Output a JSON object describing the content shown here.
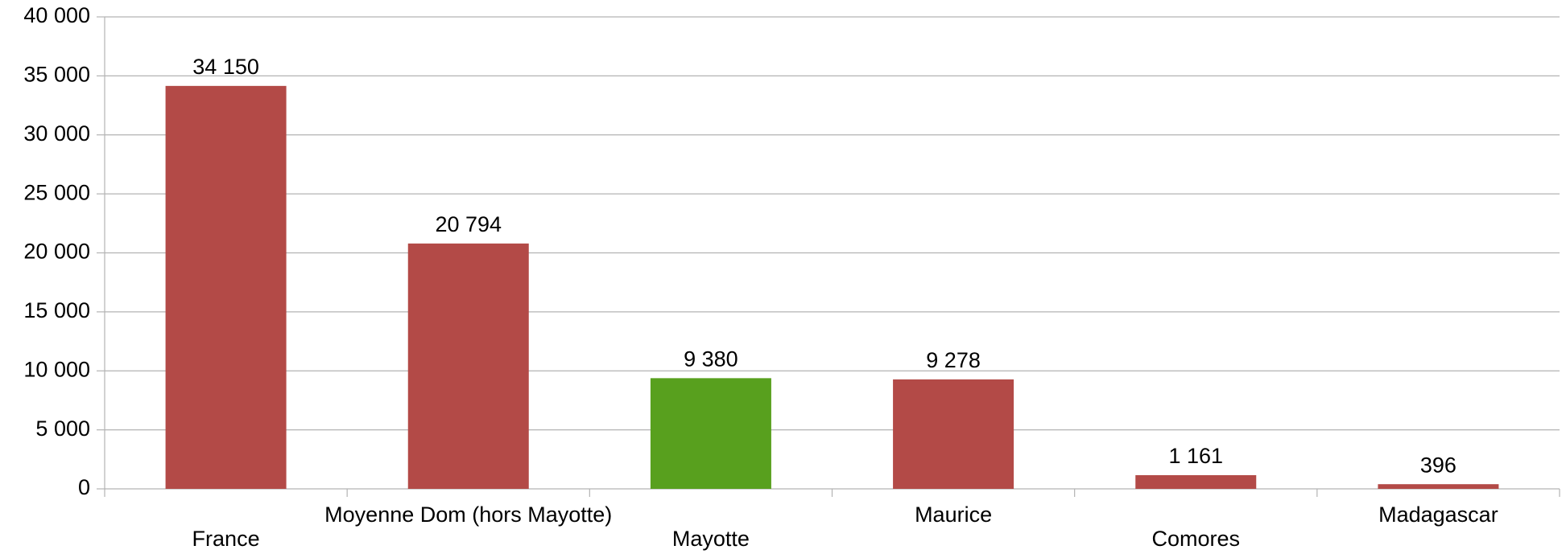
{
  "chart_data": {
    "type": "bar",
    "categories": [
      "France",
      "Moyenne Dom (hors Mayotte)",
      "Mayotte",
      "Maurice",
      "Comores",
      "Madagascar"
    ],
    "values": [
      34150,
      20794,
      9380,
      9278,
      1161,
      396
    ],
    "value_labels": [
      "34 150",
      "20 794",
      "9 380",
      "9 278",
      "1 161",
      "396"
    ],
    "colors": [
      "#b34a47",
      "#b34a47",
      "#58a01e",
      "#b34a47",
      "#b34a47",
      "#b34a47"
    ],
    "ylim": [
      0,
      40000
    ],
    "yticks": [
      0,
      {
        "value": 5000,
        "label": "5 000"
      },
      {
        "value": 10000,
        "label": "10 000"
      },
      {
        "value": 15000,
        "label": "15 000"
      },
      {
        "value": 20000,
        "label": "20 000"
      },
      {
        "value": 25000,
        "label": "25 000"
      },
      {
        "value": 30000,
        "label": "30 000"
      },
      {
        "value": 35000,
        "label": "35 000"
      },
      {
        "value": 40000,
        "label": "40 000"
      }
    ],
    "grid": true
  }
}
